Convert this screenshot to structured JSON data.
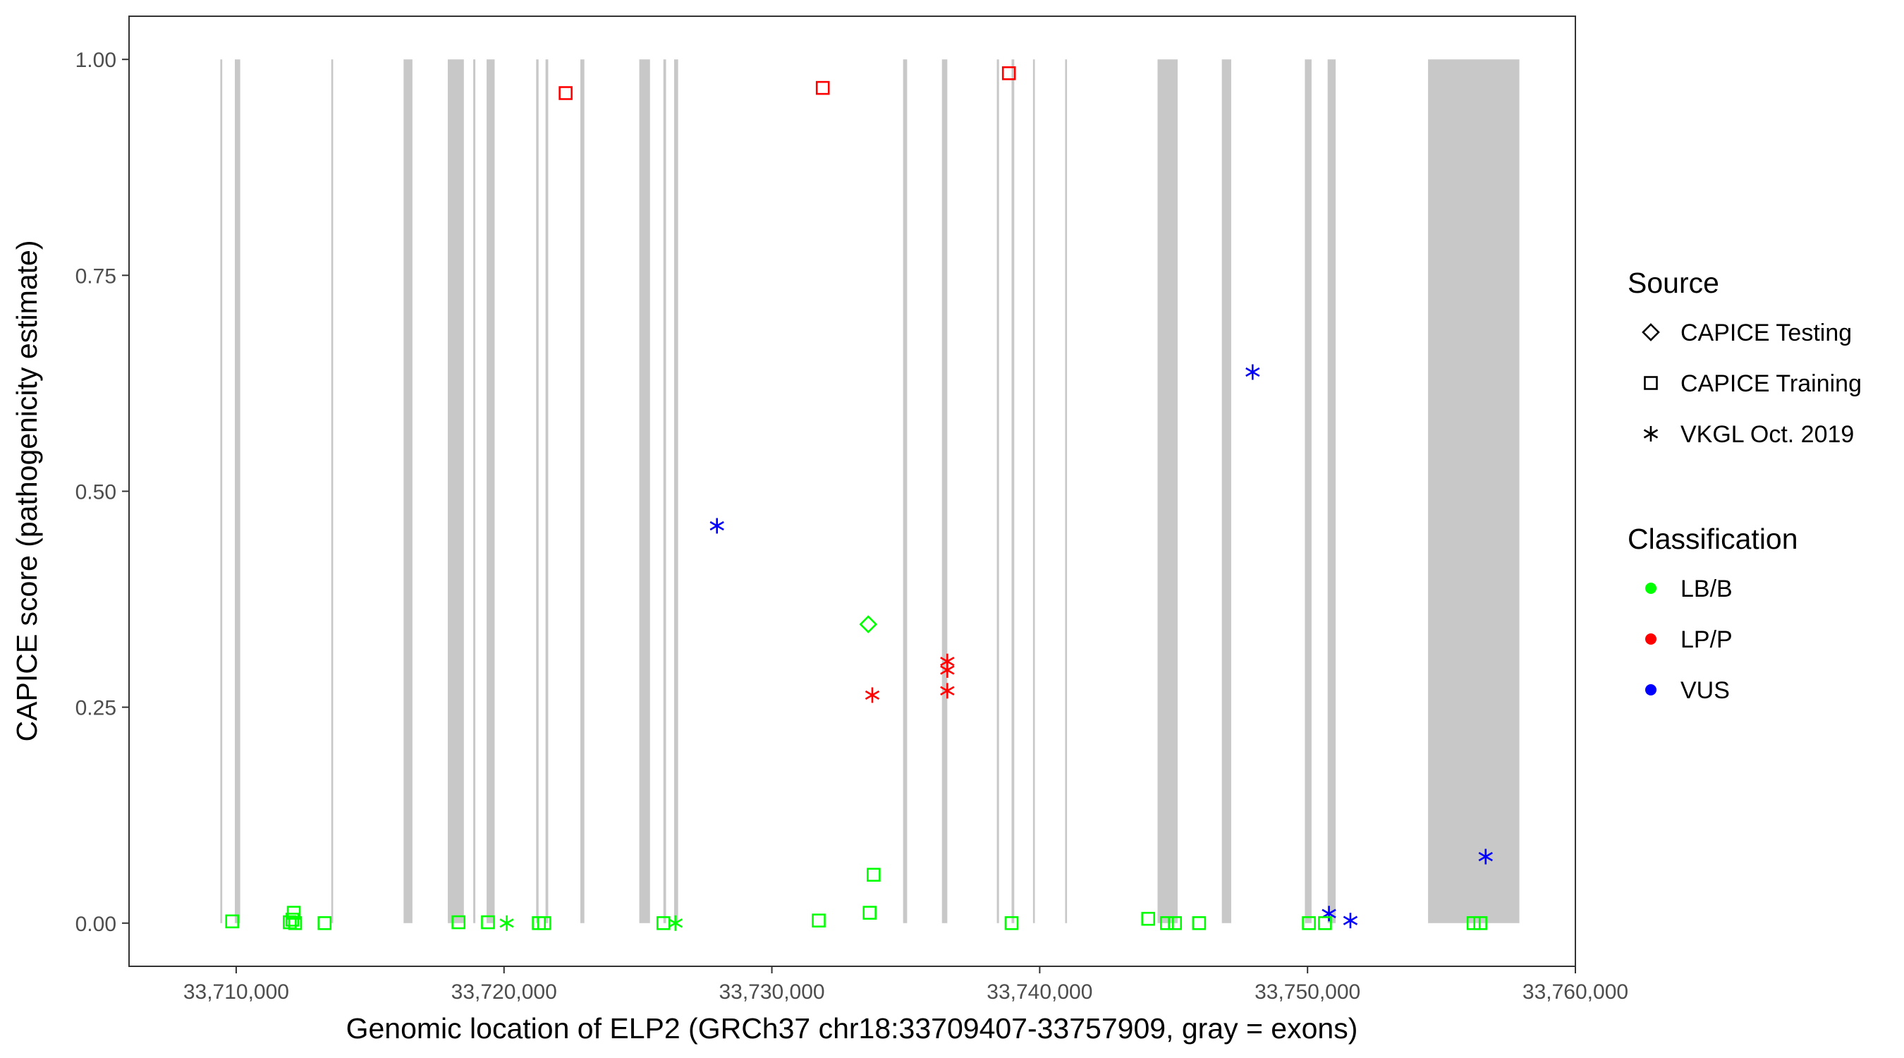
{
  "chart_data": {
    "type": "scatter",
    "xlabel": "Genomic location of ELP2 (GRCh37 chr18:33709407-33757909, gray = exons)",
    "ylabel": "CAPICE score (pathogenicity estimate)",
    "xlim": [
      33706000,
      33760000
    ],
    "ylim": [
      -0.05,
      1.05
    ],
    "x_ticks": [
      33710000,
      33720000,
      33730000,
      33740000,
      33750000,
      33760000
    ],
    "x_tick_labels": [
      "33,710,000",
      "33,720,000",
      "33,730,000",
      "33,740,000",
      "33,750,000",
      "33,760,000"
    ],
    "y_ticks": [
      0,
      0.25,
      0.5,
      0.75,
      1.0
    ],
    "y_tick_labels": [
      "0.00",
      "0.25",
      "0.50",
      "0.75",
      "1.00"
    ],
    "grid": false,
    "legend_placement": "right",
    "exons": [
      [
        33709407,
        33709480
      ],
      [
        33709950,
        33710150
      ],
      [
        33713550,
        33713620
      ],
      [
        33716250,
        33716580
      ],
      [
        33717900,
        33718500
      ],
      [
        33718850,
        33718930
      ],
      [
        33719350,
        33719650
      ],
      [
        33721200,
        33721290
      ],
      [
        33721550,
        33721650
      ],
      [
        33722850,
        33723000
      ],
      [
        33725050,
        33725450
      ],
      [
        33725950,
        33726050
      ],
      [
        33726350,
        33726500
      ],
      [
        33734900,
        33735050
      ],
      [
        33736350,
        33736550
      ],
      [
        33738400,
        33738480
      ],
      [
        33738950,
        33739050
      ],
      [
        33739750,
        33739820
      ],
      [
        33740950,
        33741020
      ],
      [
        33744400,
        33745150
      ],
      [
        33746800,
        33747150
      ],
      [
        33749900,
        33750150
      ],
      [
        33750750,
        33751050
      ],
      [
        33754500,
        33757909
      ]
    ],
    "legends": {
      "source": {
        "title": "Source",
        "items": [
          {
            "key": "capice_testing",
            "label": "CAPICE Testing",
            "shape": "diamond"
          },
          {
            "key": "capice_training",
            "label": "CAPICE Training",
            "shape": "square"
          },
          {
            "key": "vkgl",
            "label": "VKGL Oct. 2019",
            "shape": "asterisk"
          }
        ]
      },
      "classification": {
        "title": "Classification",
        "items": [
          {
            "key": "lbb",
            "label": "LB/B",
            "color": "#00ff00"
          },
          {
            "key": "lpp",
            "label": "LP/P",
            "color": "#ff0000"
          },
          {
            "key": "vus",
            "label": "VUS",
            "color": "#0000ff"
          }
        ]
      }
    },
    "points": [
      {
        "x": 33722300,
        "y": 0.961,
        "source": "capice_training",
        "class": "lpp"
      },
      {
        "x": 33731900,
        "y": 0.967,
        "source": "capice_training",
        "class": "lpp"
      },
      {
        "x": 33738850,
        "y": 0.984,
        "source": "capice_training",
        "class": "lpp"
      },
      {
        "x": 33727950,
        "y": 0.46,
        "source": "vkgl",
        "class": "vus"
      },
      {
        "x": 33747950,
        "y": 0.638,
        "source": "vkgl",
        "class": "vus"
      },
      {
        "x": 33756650,
        "y": 0.077,
        "source": "vkgl",
        "class": "vus"
      },
      {
        "x": 33750800,
        "y": 0.011,
        "source": "vkgl",
        "class": "vus"
      },
      {
        "x": 33751600,
        "y": 0.003,
        "source": "vkgl",
        "class": "vus"
      },
      {
        "x": 33733600,
        "y": 0.346,
        "source": "capice_testing",
        "class": "lbb"
      },
      {
        "x": 33733750,
        "y": 0.264,
        "source": "vkgl",
        "class": "lpp"
      },
      {
        "x": 33736550,
        "y": 0.303,
        "source": "vkgl",
        "class": "lpp"
      },
      {
        "x": 33736550,
        "y": 0.293,
        "source": "vkgl",
        "class": "lpp"
      },
      {
        "x": 33736550,
        "y": 0.269,
        "source": "vkgl",
        "class": "lpp"
      },
      {
        "x": 33733800,
        "y": 0.056,
        "source": "capice_training",
        "class": "lbb"
      },
      {
        "x": 33733650,
        "y": 0.012,
        "source": "capice_training",
        "class": "lbb"
      },
      {
        "x": 33709850,
        "y": 0.002,
        "source": "capice_training",
        "class": "lbb"
      },
      {
        "x": 33712150,
        "y": 0.012,
        "source": "capice_training",
        "class": "lbb"
      },
      {
        "x": 33712100,
        "y": 0.004,
        "source": "capice_training",
        "class": "lbb"
      },
      {
        "x": 33712000,
        "y": 0.001,
        "source": "capice_training",
        "class": "lbb"
      },
      {
        "x": 33712200,
        "y": 0.0,
        "source": "capice_training",
        "class": "lbb"
      },
      {
        "x": 33713300,
        "y": 0.0,
        "source": "capice_training",
        "class": "lbb"
      },
      {
        "x": 33718300,
        "y": 0.001,
        "source": "capice_training",
        "class": "lbb"
      },
      {
        "x": 33719400,
        "y": 0.001,
        "source": "capice_training",
        "class": "lbb"
      },
      {
        "x": 33720100,
        "y": 0.0,
        "source": "vkgl",
        "class": "lbb"
      },
      {
        "x": 33721300,
        "y": 0.0,
        "source": "capice_training",
        "class": "lbb"
      },
      {
        "x": 33721500,
        "y": 0.0,
        "source": "capice_training",
        "class": "lbb"
      },
      {
        "x": 33725950,
        "y": 0.0,
        "source": "capice_training",
        "class": "lbb"
      },
      {
        "x": 33726400,
        "y": 0.0,
        "source": "vkgl",
        "class": "lbb"
      },
      {
        "x": 33731750,
        "y": 0.003,
        "source": "capice_training",
        "class": "lbb"
      },
      {
        "x": 33738950,
        "y": 0.0,
        "source": "capice_training",
        "class": "lbb"
      },
      {
        "x": 33744050,
        "y": 0.005,
        "source": "capice_training",
        "class": "lbb"
      },
      {
        "x": 33744750,
        "y": 0.0,
        "source": "capice_training",
        "class": "lbb"
      },
      {
        "x": 33745050,
        "y": 0.0,
        "source": "capice_training",
        "class": "lbb"
      },
      {
        "x": 33745950,
        "y": 0.0,
        "source": "capice_training",
        "class": "lbb"
      },
      {
        "x": 33750050,
        "y": 0.0,
        "source": "capice_training",
        "class": "lbb"
      },
      {
        "x": 33750650,
        "y": 0.0,
        "source": "capice_training",
        "class": "lbb"
      },
      {
        "x": 33756200,
        "y": 0.0,
        "source": "capice_training",
        "class": "lbb"
      },
      {
        "x": 33756450,
        "y": 0.0,
        "source": "capice_training",
        "class": "lbb"
      }
    ]
  }
}
